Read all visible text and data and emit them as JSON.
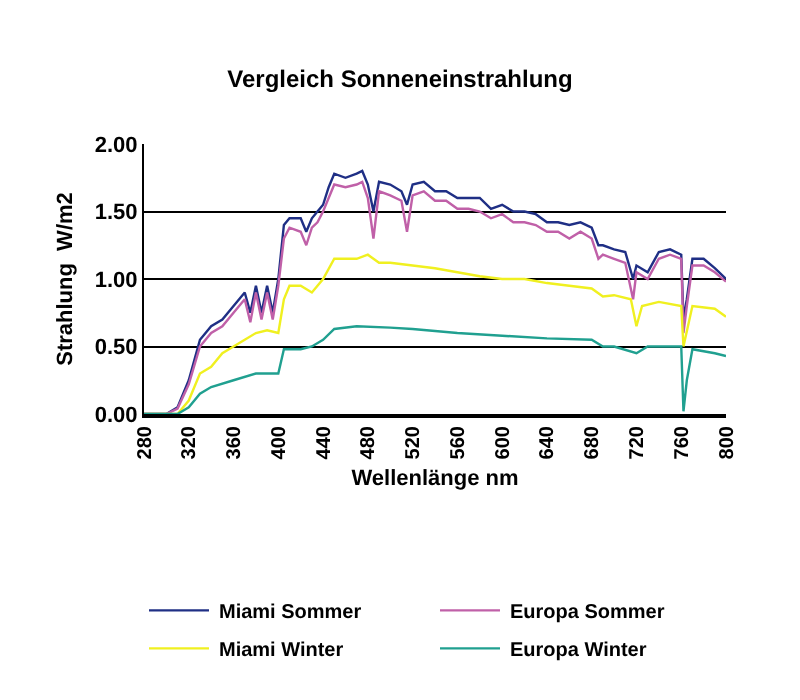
{
  "chart_data": {
    "type": "line",
    "title": "Vergleich Sonneneinstrahlung",
    "xlabel": "Wellenlänge nm",
    "ylabel": "Strahlung  W/m2",
    "xlim": [
      280,
      800
    ],
    "xticks": [
      280,
      320,
      360,
      400,
      440,
      480,
      520,
      560,
      600,
      640,
      680,
      720,
      760,
      800
    ],
    "ylim": [
      0,
      2
    ],
    "yticks": [
      {
        "value": 0,
        "label": "0.00"
      },
      {
        "value": 0.5,
        "label": "0.50"
      },
      {
        "value": 1,
        "label": "1.00"
      },
      {
        "value": 1.5,
        "label": "1.50"
      },
      {
        "value": 2,
        "label": "2.00"
      }
    ],
    "grid": "y",
    "legend": "bottom",
    "line_style": "solid",
    "marker": "none",
    "series": [
      {
        "name": "Miami Sommer",
        "color": "#1f2f85",
        "x": [
          280,
          300,
          310,
          320,
          330,
          340,
          350,
          360,
          370,
          375,
          380,
          385,
          390,
          395,
          400,
          405,
          410,
          420,
          425,
          430,
          435,
          440,
          445,
          450,
          460,
          470,
          475,
          480,
          485,
          490,
          500,
          510,
          515,
          520,
          530,
          540,
          550,
          560,
          570,
          580,
          590,
          600,
          610,
          620,
          630,
          640,
          650,
          660,
          670,
          680,
          686,
          690,
          700,
          710,
          717,
          720,
          730,
          740,
          750,
          760,
          762,
          765,
          770,
          780,
          790,
          800
        ],
        "values": [
          0,
          0,
          0.05,
          0.25,
          0.55,
          0.65,
          0.7,
          0.8,
          0.9,
          0.75,
          0.95,
          0.75,
          0.95,
          0.75,
          1.0,
          1.4,
          1.45,
          1.45,
          1.35,
          1.45,
          1.5,
          1.55,
          1.68,
          1.78,
          1.75,
          1.78,
          1.8,
          1.7,
          1.5,
          1.72,
          1.7,
          1.65,
          1.55,
          1.7,
          1.72,
          1.65,
          1.65,
          1.6,
          1.6,
          1.6,
          1.52,
          1.55,
          1.5,
          1.5,
          1.48,
          1.42,
          1.42,
          1.4,
          1.42,
          1.38,
          1.25,
          1.25,
          1.22,
          1.2,
          1.0,
          1.1,
          1.05,
          1.2,
          1.22,
          1.18,
          0.7,
          0.85,
          1.15,
          1.15,
          1.08,
          1.0
        ]
      },
      {
        "name": "Europa Sommer",
        "color": "#c060a8",
        "x": [
          280,
          300,
          310,
          320,
          330,
          340,
          350,
          360,
          370,
          375,
          380,
          385,
          390,
          395,
          400,
          405,
          410,
          420,
          425,
          430,
          435,
          440,
          445,
          450,
          460,
          470,
          475,
          480,
          485,
          490,
          500,
          510,
          515,
          520,
          530,
          540,
          550,
          560,
          570,
          580,
          590,
          600,
          610,
          620,
          630,
          640,
          650,
          660,
          670,
          680,
          686,
          690,
          700,
          710,
          717,
          720,
          730,
          740,
          750,
          760,
          762,
          765,
          770,
          780,
          790,
          800
        ],
        "values": [
          0,
          0,
          0.04,
          0.22,
          0.5,
          0.6,
          0.65,
          0.75,
          0.85,
          0.68,
          0.9,
          0.7,
          0.9,
          0.7,
          0.95,
          1.3,
          1.38,
          1.35,
          1.25,
          1.38,
          1.42,
          1.5,
          1.6,
          1.7,
          1.68,
          1.7,
          1.72,
          1.6,
          1.3,
          1.65,
          1.62,
          1.58,
          1.35,
          1.62,
          1.65,
          1.58,
          1.58,
          1.52,
          1.52,
          1.5,
          1.45,
          1.48,
          1.42,
          1.42,
          1.4,
          1.35,
          1.35,
          1.3,
          1.35,
          1.3,
          1.15,
          1.18,
          1.15,
          1.12,
          0.85,
          1.05,
          1.0,
          1.15,
          1.18,
          1.15,
          0.6,
          0.8,
          1.1,
          1.1,
          1.05,
          0.98
        ]
      },
      {
        "name": "Miami Winter",
        "color": "#f0f020",
        "x": [
          280,
          310,
          320,
          330,
          340,
          350,
          360,
          370,
          380,
          390,
          400,
          405,
          410,
          420,
          430,
          440,
          450,
          460,
          470,
          480,
          490,
          500,
          520,
          540,
          560,
          580,
          600,
          620,
          640,
          660,
          680,
          690,
          700,
          715,
          720,
          725,
          740,
          760,
          762,
          770,
          790,
          800
        ],
        "values": [
          0,
          0,
          0.1,
          0.3,
          0.35,
          0.45,
          0.5,
          0.55,
          0.6,
          0.62,
          0.6,
          0.85,
          0.95,
          0.95,
          0.9,
          1.0,
          1.15,
          1.15,
          1.15,
          1.18,
          1.12,
          1.12,
          1.1,
          1.08,
          1.05,
          1.02,
          1.0,
          1.0,
          0.97,
          0.95,
          0.93,
          0.87,
          0.88,
          0.85,
          0.65,
          0.8,
          0.83,
          0.8,
          0.5,
          0.8,
          0.78,
          0.72
        ]
      },
      {
        "name": "Europa Winter",
        "color": "#20a090",
        "x": [
          280,
          310,
          320,
          330,
          340,
          360,
          380,
          400,
          405,
          420,
          430,
          440,
          450,
          470,
          500,
          520,
          560,
          600,
          640,
          680,
          690,
          700,
          720,
          730,
          760,
          762,
          765,
          770,
          790,
          800
        ],
        "values": [
          0,
          0,
          0.05,
          0.15,
          0.2,
          0.25,
          0.3,
          0.3,
          0.48,
          0.48,
          0.5,
          0.55,
          0.63,
          0.65,
          0.64,
          0.63,
          0.6,
          0.58,
          0.56,
          0.55,
          0.5,
          0.5,
          0.45,
          0.5,
          0.5,
          0.02,
          0.25,
          0.48,
          0.45,
          0.43
        ]
      }
    ]
  }
}
